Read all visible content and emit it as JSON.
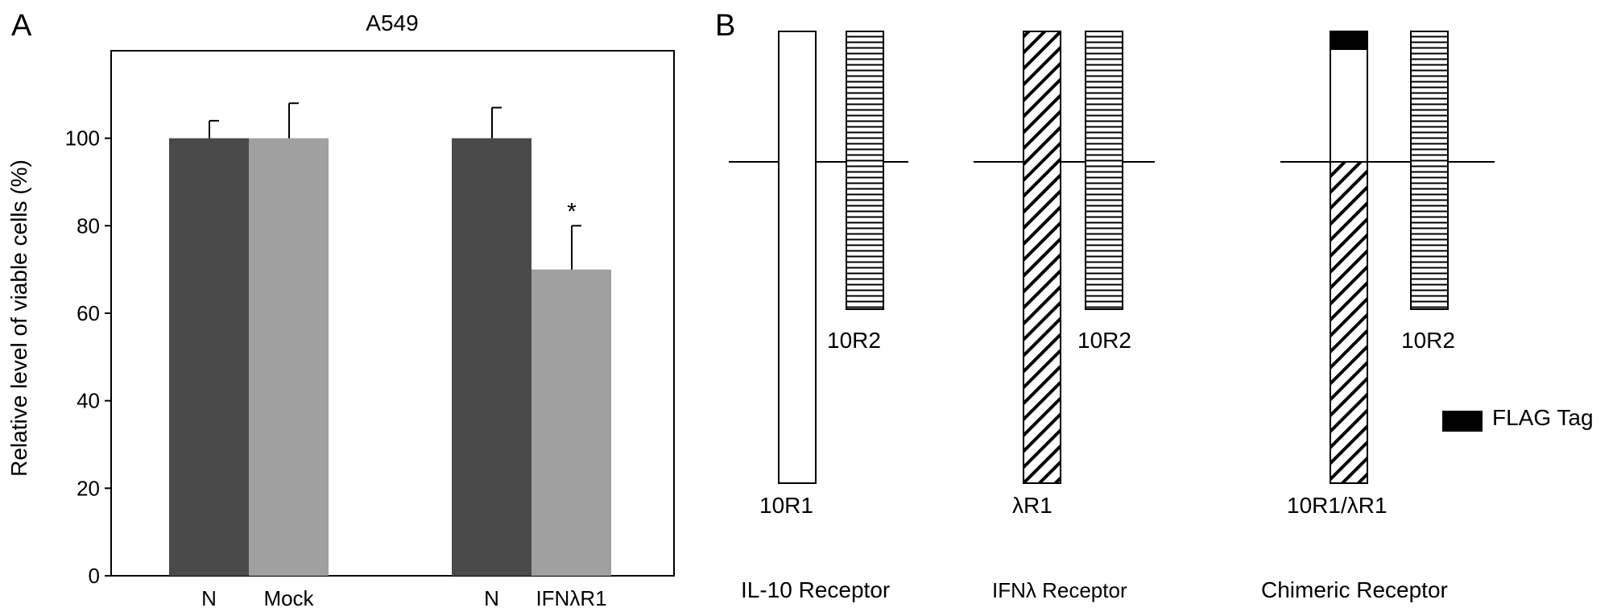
{
  "panel_a": {
    "letter": "A",
    "chart_data": {
      "type": "bar",
      "title": "A549",
      "xlabel": "",
      "ylabel": "Relative level of viable cells (%)",
      "ylim": [
        0,
        120
      ],
      "yticks": [
        0,
        20,
        40,
        60,
        80,
        100
      ],
      "grid": false,
      "groups": [
        {
          "bars": [
            {
              "label": "N",
              "value": 100,
              "error": 4,
              "color": "#4a4a4a",
              "annotation": ""
            },
            {
              "label": "Mock",
              "value": 100,
              "error": 8,
              "color": "#a0a0a0",
              "annotation": ""
            }
          ]
        },
        {
          "bars": [
            {
              "label": "N",
              "value": 100,
              "error": 7,
              "color": "#4a4a4a",
              "annotation": ""
            },
            {
              "label": "IFNλR1",
              "value": 70,
              "error": 10,
              "color": "#a0a0a0",
              "annotation": "*"
            }
          ]
        }
      ]
    }
  },
  "panel_b": {
    "letter": "B",
    "receptors": [
      {
        "name": "IL-10 Receptor",
        "chains": [
          {
            "label": "10R1",
            "pattern": "white",
            "flag": false,
            "long": true
          },
          {
            "label": "10R2",
            "pattern": "horizontal",
            "flag": false,
            "long": false
          }
        ]
      },
      {
        "name": "IFNλ Receptor",
        "chains": [
          {
            "label": "λR1",
            "pattern": "diagonal",
            "flag": false,
            "long": true
          },
          {
            "label": "10R2",
            "pattern": "horizontal",
            "flag": false,
            "long": false
          }
        ]
      },
      {
        "name": "Chimeric Receptor",
        "chains": [
          {
            "label": "10R1/λR1",
            "pattern": "chimeric",
            "flag": true,
            "long": true
          },
          {
            "label": "10R2",
            "pattern": "horizontal",
            "flag": false,
            "long": false
          }
        ]
      }
    ],
    "legend": {
      "label": "FLAG Tag",
      "color": "#000000"
    }
  }
}
